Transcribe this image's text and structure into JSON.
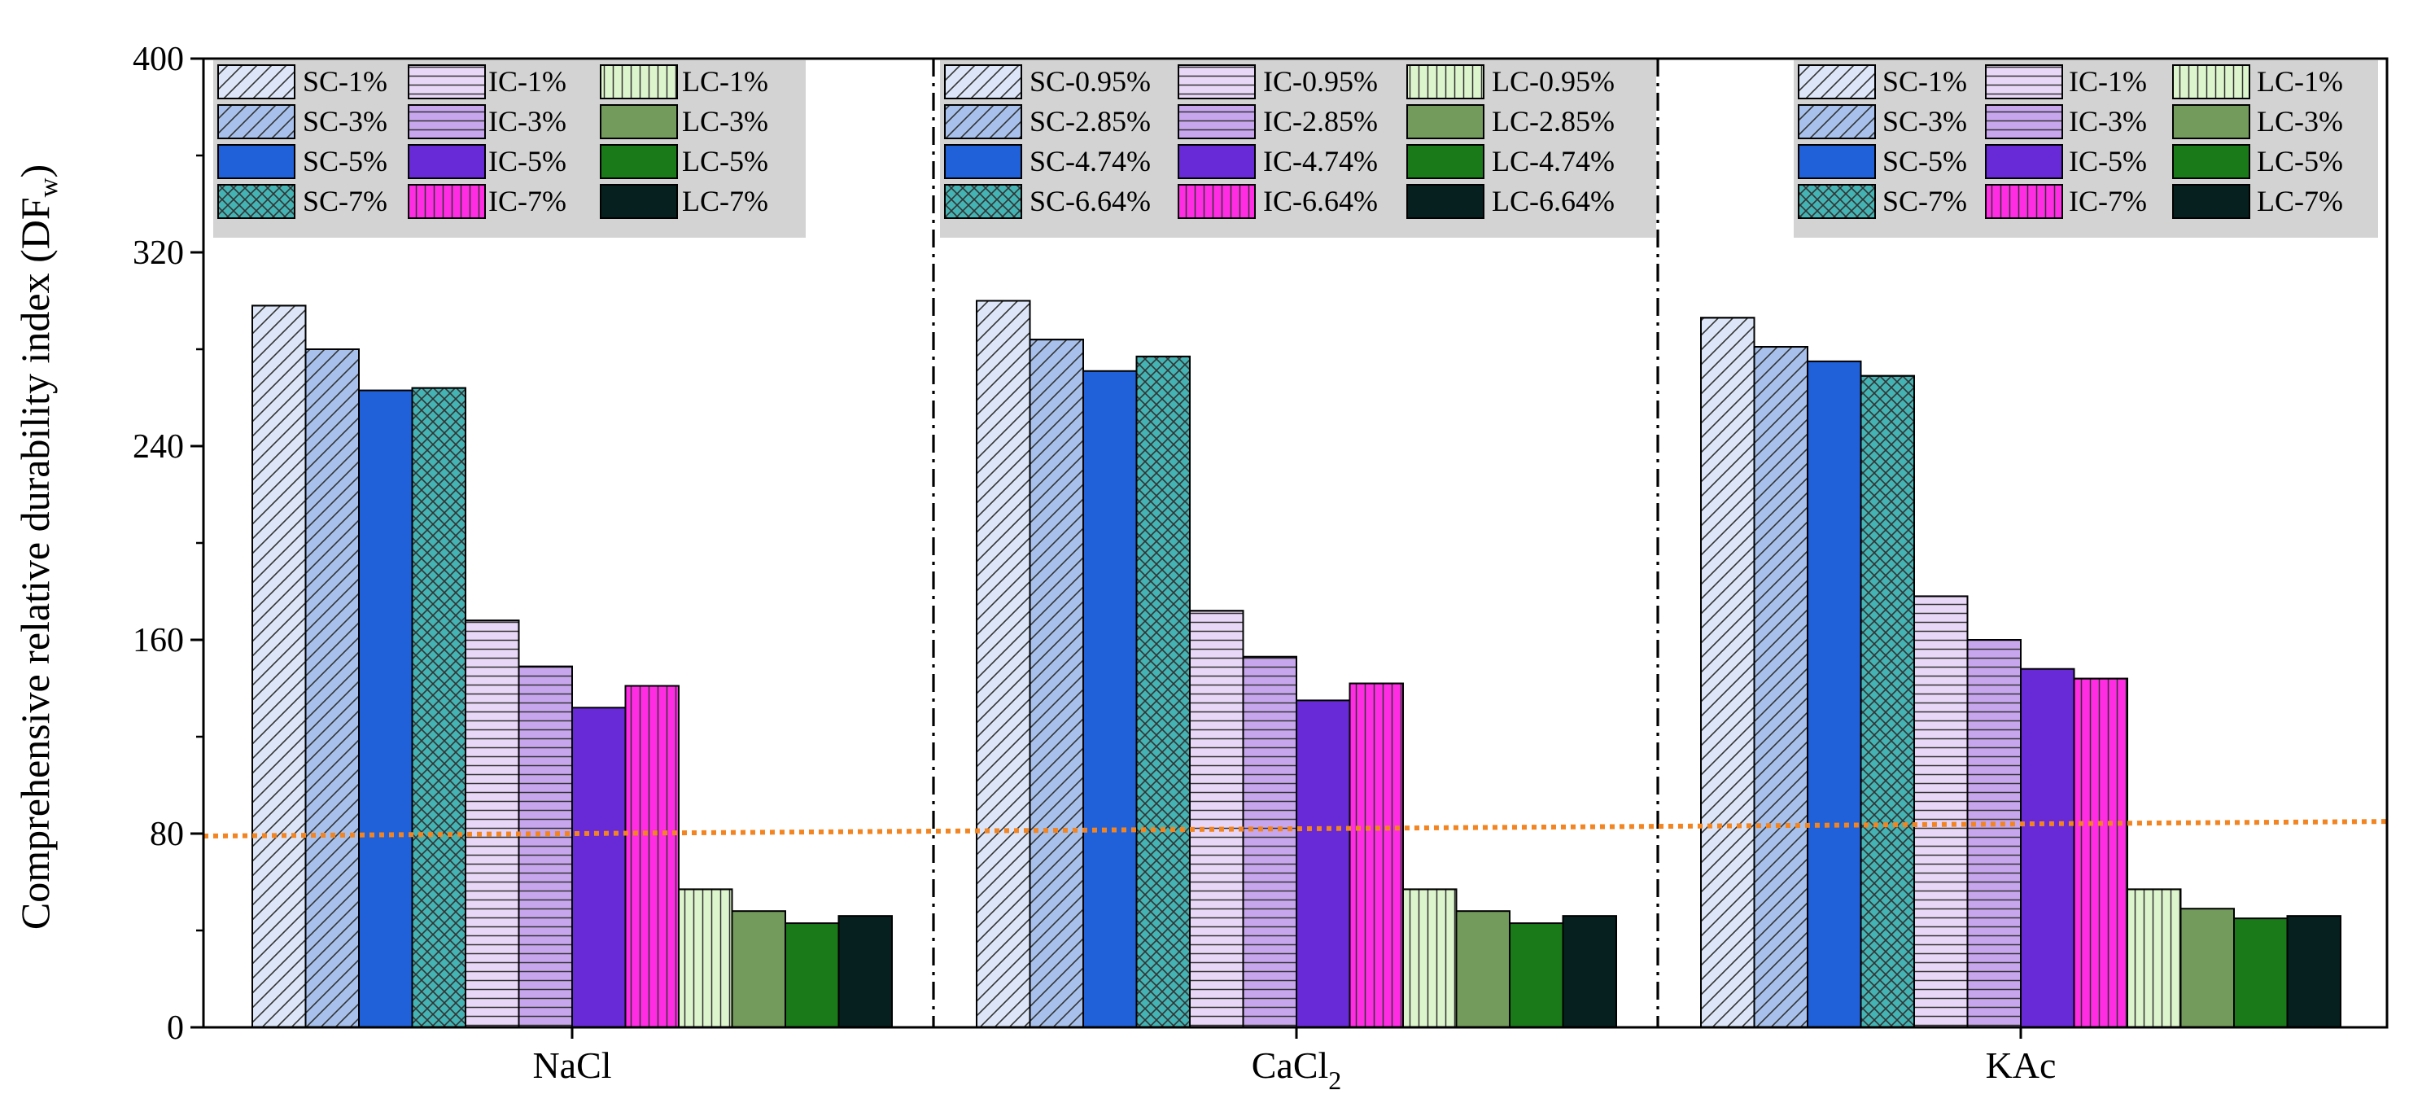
{
  "chart_data": {
    "type": "bar",
    "ylabel": "Comprehensive relative durability index (DF",
    "ylabel_sub": "w",
    "ylabel_close": ")",
    "ylim": [
      0,
      400
    ],
    "yticks": [
      "0",
      "80",
      "160",
      "240",
      "320",
      "400"
    ],
    "threshold": {
      "name": "threshold-line",
      "from": 79,
      "to": 85,
      "color": "#F28522"
    },
    "styles": {
      "SC1": {
        "fill": "#DCE6F8",
        "pattern": "diag"
      },
      "SC2": {
        "fill": "#A7C1EC",
        "pattern": "diag"
      },
      "SC3": {
        "fill": "#2060D8",
        "pattern": "none"
      },
      "SC4": {
        "fill": "#44B3B3",
        "pattern": "cross"
      },
      "IC1": {
        "fill": "#E8D7F7",
        "pattern": "hlines"
      },
      "IC2": {
        "fill": "#C7A6EE",
        "pattern": "hlines"
      },
      "IC3": {
        "fill": "#6829D6",
        "pattern": "none"
      },
      "IC4": {
        "fill": "#FF2CE4",
        "pattern": "vlines"
      },
      "LC1": {
        "fill": "#DDF5CD",
        "pattern": "vlines"
      },
      "LC2": {
        "fill": "#739B5C",
        "pattern": "none"
      },
      "LC3": {
        "fill": "#1A7A1A",
        "pattern": "none"
      },
      "LC4": {
        "fill": "#062020",
        "pattern": "none"
      }
    },
    "groups": [
      {
        "name": "NaCl",
        "label_main": "NaCl",
        "label_sub": "",
        "series": [
          {
            "key": "SC1",
            "name": "SC-1%",
            "value": 298
          },
          {
            "key": "SC2",
            "name": "SC-3%",
            "value": 280
          },
          {
            "key": "SC3",
            "name": "SC-5%",
            "value": 263
          },
          {
            "key": "SC4",
            "name": "SC-7%",
            "value": 264
          },
          {
            "key": "IC1",
            "name": "IC-1%",
            "value": 168
          },
          {
            "key": "IC2",
            "name": "IC-3%",
            "value": 149
          },
          {
            "key": "IC3",
            "name": "IC-5%",
            "value": 132
          },
          {
            "key": "IC4",
            "name": "IC-7%",
            "value": 141
          },
          {
            "key": "LC1",
            "name": "LC-1%",
            "value": 57
          },
          {
            "key": "LC2",
            "name": "LC-3%",
            "value": 48
          },
          {
            "key": "LC3",
            "name": "LC-5%",
            "value": 43
          },
          {
            "key": "LC4",
            "name": "LC-7%",
            "value": 46
          }
        ]
      },
      {
        "name": "CaCl2",
        "label_main": "CaCl",
        "label_sub": "2",
        "series": [
          {
            "key": "SC1",
            "name": "SC-0.95%",
            "value": 300
          },
          {
            "key": "SC2",
            "name": "SC-2.85%",
            "value": 284
          },
          {
            "key": "SC3",
            "name": "SC-4.74%",
            "value": 271
          },
          {
            "key": "SC4",
            "name": "SC-6.64%",
            "value": 277
          },
          {
            "key": "IC1",
            "name": "IC-0.95%",
            "value": 172
          },
          {
            "key": "IC2",
            "name": "IC-2.85%",
            "value": 153
          },
          {
            "key": "IC3",
            "name": "IC-4.74%",
            "value": 135
          },
          {
            "key": "IC4",
            "name": "IC-6.64%",
            "value": 142
          },
          {
            "key": "LC1",
            "name": "LC-0.95%",
            "value": 57
          },
          {
            "key": "LC2",
            "name": "LC-2.85%",
            "value": 48
          },
          {
            "key": "LC3",
            "name": "LC-4.74%",
            "value": 43
          },
          {
            "key": "LC4",
            "name": "LC-6.64%",
            "value": 46
          }
        ]
      },
      {
        "name": "KAc",
        "label_main": "KAc",
        "label_sub": "",
        "series": [
          {
            "key": "SC1",
            "name": "SC-1%",
            "value": 293
          },
          {
            "key": "SC2",
            "name": "SC-3%",
            "value": 281
          },
          {
            "key": "SC3",
            "name": "SC-5%",
            "value": 275
          },
          {
            "key": "SC4",
            "name": "SC-7%",
            "value": 269
          },
          {
            "key": "IC1",
            "name": "IC-1%",
            "value": 178
          },
          {
            "key": "IC2",
            "name": "IC-3%",
            "value": 160
          },
          {
            "key": "IC3",
            "name": "IC-5%",
            "value": 148
          },
          {
            "key": "IC4",
            "name": "IC-7%",
            "value": 144
          },
          {
            "key": "LC1",
            "name": "LC-1%",
            "value": 57
          },
          {
            "key": "LC2",
            "name": "LC-3%",
            "value": 49
          },
          {
            "key": "LC3",
            "name": "LC-5%",
            "value": 45
          },
          {
            "key": "LC4",
            "name": "LC-7%",
            "value": 46
          }
        ]
      }
    ]
  }
}
